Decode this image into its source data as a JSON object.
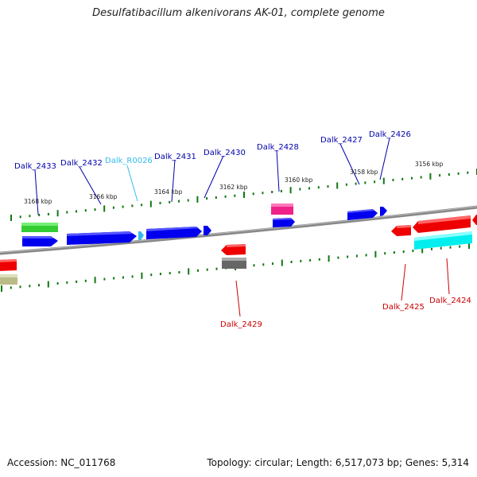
{
  "title": "Desulfatibacillum alkenivorans AK-01, complete genome",
  "footer": {
    "accession": "Accession: NC_011768",
    "topology": "Topology: circular; Length: 6,517,073 bp; Genes: 5,314"
  },
  "colors": {
    "forward_gene": "#0000ee",
    "reverse_gene": "#ee0000",
    "rna_gene": "#33bbee",
    "green_gene": "#33cc33",
    "magenta_gene": "#ee2288",
    "cyan_gene": "#00eeee",
    "gray_gene": "#666666",
    "olive_gene": "#bbbb88",
    "tick_color": "#117711",
    "backbone": "#888888",
    "forward_label": "#0000aa",
    "reverse_label": "#cc0000",
    "rna_label": "#33bbee"
  },
  "scale_labels": [
    "3168 kbp",
    "3166 kbp",
    "3164 kbp",
    "3162 kbp",
    "3160 kbp",
    "3158 kbp",
    "3156 kbp"
  ],
  "genes_top": [
    "Dalk_2433",
    "Dalk_2432",
    "Dalk_R0026",
    "Dalk_2431",
    "Dalk_2430",
    "Dalk_2428",
    "Dalk_2427",
    "Dalk_2426"
  ],
  "genes_bottom": [
    "Dalk_2429",
    "Dalk_2425",
    "Dalk_2424"
  ]
}
